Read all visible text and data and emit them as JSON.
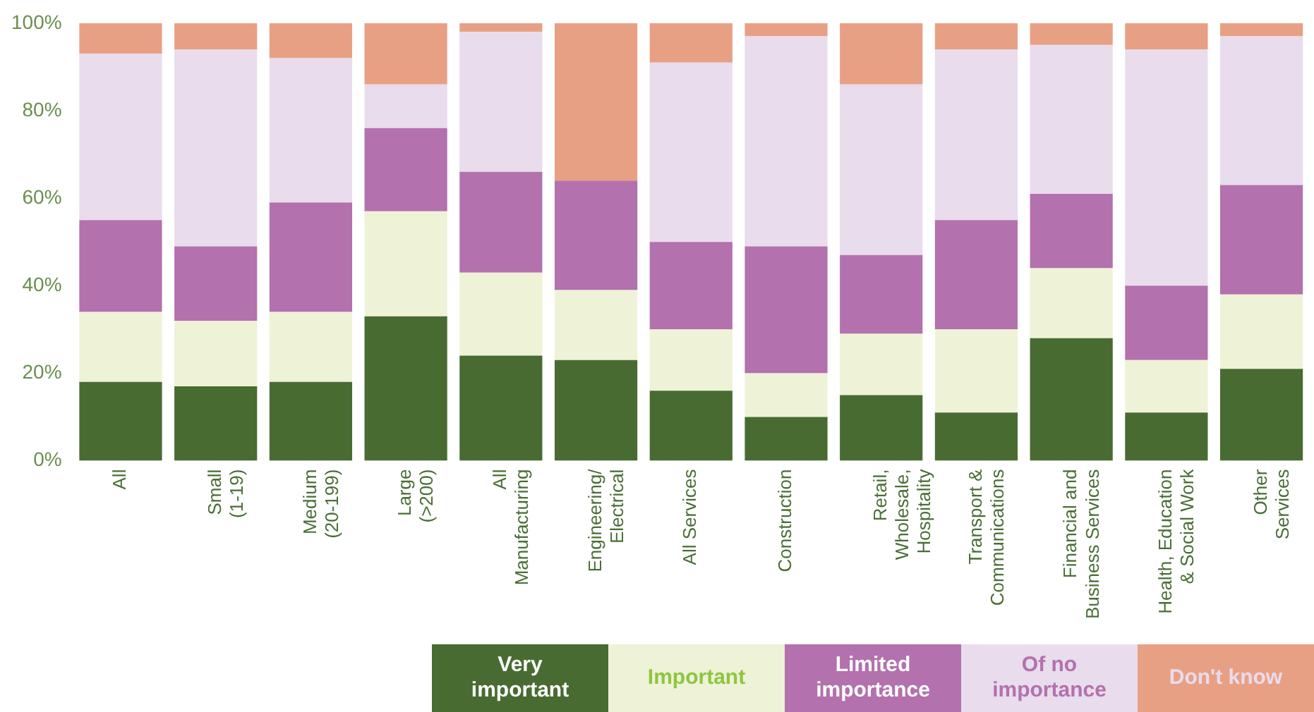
{
  "chart_data": {
    "type": "bar",
    "stacked": true,
    "categories": [
      "All",
      "Small\n(1-19)",
      "Medium\n(20-199)",
      "Large\n(>200)",
      "All\nManufacturing",
      "Engineering/\nElectrical",
      "All Services",
      "Construction",
      "Retail,\nWholesale,\nHospitality",
      "Transport &\nCommunications",
      "Financial and\nBusiness Services",
      "Health, Education\n& Social Work",
      "Other\nServices"
    ],
    "series": [
      {
        "name": "Very important",
        "color": "#486b32",
        "values": [
          18,
          17,
          18,
          33,
          24,
          23,
          16,
          10,
          15,
          11,
          28,
          11,
          21
        ]
      },
      {
        "name": "Important",
        "color": "#eef2d7",
        "values": [
          16,
          15,
          16,
          24,
          19,
          16,
          14,
          10,
          14,
          19,
          16,
          12,
          17
        ]
      },
      {
        "name": "Limited importance",
        "color": "#b371ad",
        "values": [
          21,
          17,
          25,
          19,
          23,
          25,
          20,
          29,
          18,
          25,
          17,
          17,
          25
        ]
      },
      {
        "name": "Of no importance",
        "color": "#e8dced",
        "values": [
          38,
          45,
          33,
          10,
          32,
          null,
          41,
          48,
          39,
          39,
          34,
          54,
          34
        ]
      },
      {
        "name": "Don't know",
        "color": "#e8a084",
        "values": [
          7,
          6,
          8,
          14,
          2,
          36,
          9,
          3,
          14,
          6,
          5,
          6,
          3
        ]
      }
    ],
    "ylim": [
      0,
      100
    ],
    "yticks": [
      {
        "value": 0,
        "label": "0%"
      },
      {
        "value": 20,
        "label": "20%"
      },
      {
        "value": 40,
        "label": "40%"
      },
      {
        "value": 60,
        "label": "60%"
      },
      {
        "value": 80,
        "label": "80%"
      },
      {
        "value": 100,
        "label": "100%"
      }
    ],
    "grid": false,
    "legend": "bottom right"
  }
}
